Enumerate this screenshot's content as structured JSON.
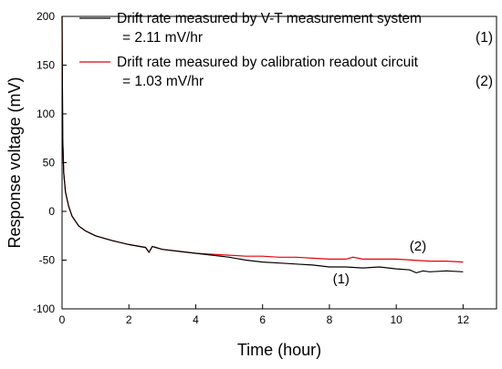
{
  "chart_data": {
    "type": "line",
    "xlabel": "Time (hour)",
    "ylabel": "Response voltage (mV)",
    "xlim": [
      0,
      13
    ],
    "ylim": [
      -100,
      200
    ],
    "xticks": [
      0,
      2,
      4,
      6,
      8,
      10,
      12
    ],
    "yticks": [
      -100,
      -50,
      0,
      50,
      100,
      150,
      200
    ],
    "legend_position": "top-right",
    "series": [
      {
        "name": "Drift rate measured by V-T measurement system",
        "name_line2": "= 2.11 mV/hr",
        "tag": "(1)",
        "color": "#000000",
        "x": [
          0,
          0.02,
          0.05,
          0.1,
          0.2,
          0.3,
          0.5,
          0.7,
          1,
          1.5,
          2,
          2.5,
          2.6,
          2.7,
          3,
          3.5,
          4,
          4.5,
          5,
          5.5,
          6,
          6.5,
          7,
          7.5,
          8,
          8.5,
          9,
          9.5,
          10,
          10.4,
          10.6,
          10.8,
          11,
          11.5,
          12
        ],
        "y": [
          200,
          75,
          40,
          20,
          5,
          -5,
          -15,
          -20,
          -25,
          -30,
          -34,
          -37,
          -42,
          -36,
          -39,
          -41,
          -43,
          -45,
          -47,
          -50,
          -52,
          -53,
          -54,
          -55,
          -57,
          -57,
          -58,
          -57,
          -59,
          -60,
          -63,
          -61,
          -62,
          -61,
          -62
        ]
      },
      {
        "name": "Drift rate measured by calibration readout circuit",
        "name_line2": "= 1.03 mV/hr",
        "tag": "(2)",
        "color": "#e8000b",
        "x": [
          0,
          0.02,
          0.05,
          0.1,
          0.2,
          0.3,
          0.5,
          0.7,
          1,
          1.5,
          2,
          2.5,
          2.6,
          2.7,
          3,
          3.5,
          4,
          4.5,
          5,
          5.5,
          6,
          6.5,
          7,
          7.5,
          8,
          8.5,
          8.7,
          9,
          9.5,
          10,
          10.5,
          11,
          11.5,
          12
        ],
        "y": [
          200,
          75,
          40,
          20,
          5,
          -5,
          -15,
          -20,
          -25,
          -30,
          -34,
          -37,
          -42,
          -36,
          -39,
          -41,
          -43,
          -44,
          -45,
          -46,
          -46,
          -47,
          -47,
          -48,
          -49,
          -49,
          -47,
          -49,
          -49,
          -49,
          -50,
          -51,
          -51,
          -52
        ]
      }
    ],
    "annotations": [
      {
        "text": "(1)",
        "x": 8.1,
        "y": -74
      },
      {
        "text": "(2)",
        "x": 10.4,
        "y": -40
      }
    ]
  }
}
